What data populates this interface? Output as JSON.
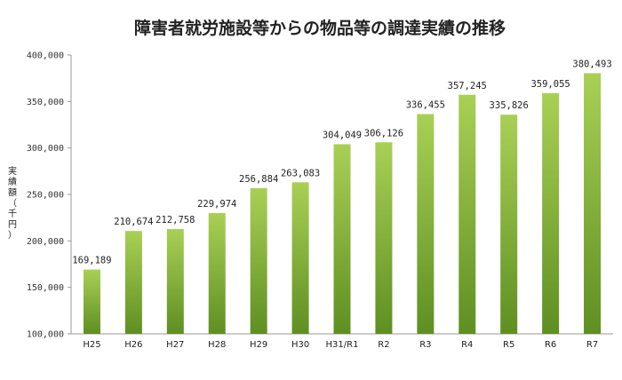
{
  "chart_data": {
    "type": "bar",
    "title": "障害者就労施設等からの物品等の調達実績の推移",
    "ylabel": "実績額（千円）",
    "ylabel_chars": [
      "実",
      "績",
      "額",
      "（",
      "千",
      "円",
      "）"
    ],
    "xlabel": "",
    "categories": [
      "H25",
      "H26",
      "H27",
      "H28",
      "H29",
      "H30",
      "H31/R1",
      "R2",
      "R3",
      "R4",
      "R5",
      "R6",
      "R7"
    ],
    "values": [
      169189,
      210674,
      212758,
      229974,
      256884,
      263083,
      304049,
      306126,
      336455,
      357245,
      335826,
      359055,
      380493
    ],
    "value_labels": [
      "169,189",
      "210,674",
      "212,758",
      "229,974",
      "256,884",
      "263,083",
      "304,049",
      "306,126",
      "336,455",
      "357,245",
      "335,826",
      "359,055",
      "380,493"
    ],
    "ylim": [
      100000,
      400000
    ],
    "yticks": [
      100000,
      150000,
      200000,
      250000,
      300000,
      350000,
      400000
    ],
    "ytick_labels": [
      "100,000",
      "150,000",
      "200,000",
      "250,000",
      "300,000",
      "350,000",
      "400,000"
    ],
    "grid": false,
    "legend": "none",
    "colors": {
      "bar_top": "#a9d055",
      "bar_bottom": "#5e8f22",
      "axis": "#9a9a9a"
    }
  }
}
